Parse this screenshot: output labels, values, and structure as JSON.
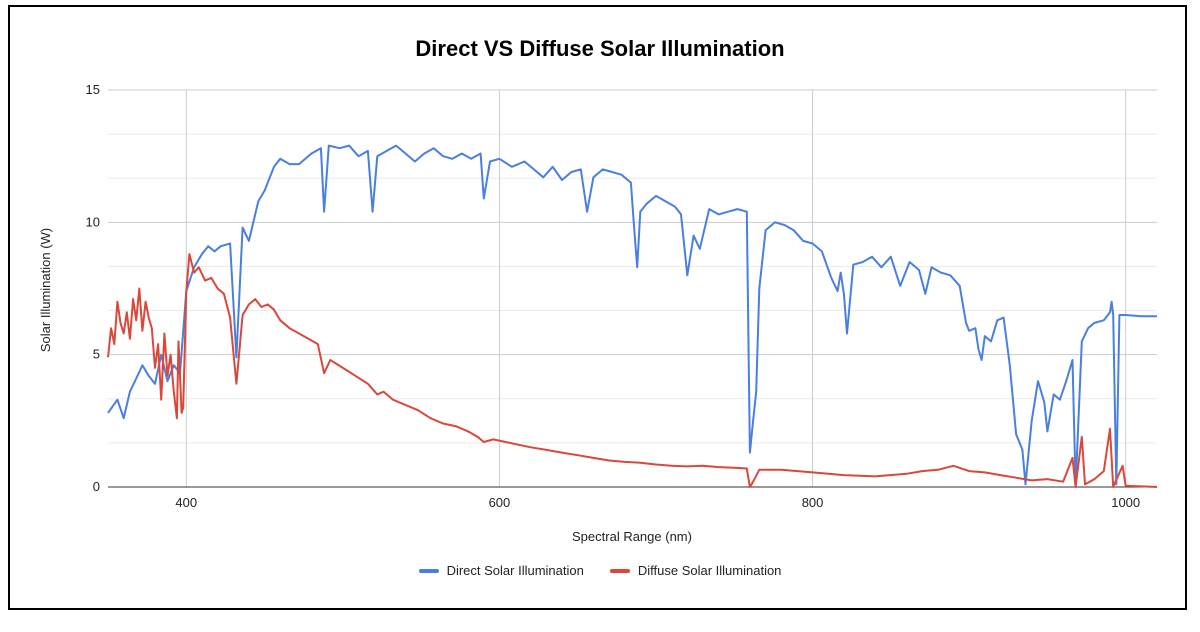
{
  "chart_data": {
    "type": "line",
    "title": "Direct VS Diffuse Solar Illumination",
    "xlabel": "Spectral Range (nm)",
    "ylabel": "Solar Illumination (W)",
    "xlim": [
      350,
      1020
    ],
    "ylim": [
      0,
      15
    ],
    "xticks": [
      400,
      600,
      800,
      1000
    ],
    "yticks": [
      0,
      5,
      10,
      15
    ],
    "grid": true,
    "legend_position": "bottom",
    "series": [
      {
        "name": "Direct Solar Illumination",
        "color": "#4a7fe0",
        "points": [
          [
            350,
            2.8
          ],
          [
            356,
            3.3
          ],
          [
            360,
            2.6
          ],
          [
            364,
            3.6
          ],
          [
            368,
            4.1
          ],
          [
            372,
            4.6
          ],
          [
            376,
            4.2
          ],
          [
            380,
            3.9
          ],
          [
            384,
            5.0
          ],
          [
            388,
            4.0
          ],
          [
            392,
            4.6
          ],
          [
            396,
            4.3
          ],
          [
            400,
            7.4
          ],
          [
            405,
            8.3
          ],
          [
            410,
            8.8
          ],
          [
            414,
            9.1
          ],
          [
            418,
            8.9
          ],
          [
            422,
            9.1
          ],
          [
            428,
            9.2
          ],
          [
            432,
            4.9
          ],
          [
            436,
            9.8
          ],
          [
            440,
            9.3
          ],
          [
            446,
            10.8
          ],
          [
            450,
            11.2
          ],
          [
            456,
            12.1
          ],
          [
            460,
            12.4
          ],
          [
            466,
            12.2
          ],
          [
            472,
            12.2
          ],
          [
            480,
            12.6
          ],
          [
            486,
            12.8
          ],
          [
            488,
            10.4
          ],
          [
            491,
            12.9
          ],
          [
            498,
            12.8
          ],
          [
            504,
            12.9
          ],
          [
            510,
            12.5
          ],
          [
            516,
            12.7
          ],
          [
            519,
            10.4
          ],
          [
            522,
            12.5
          ],
          [
            528,
            12.7
          ],
          [
            534,
            12.9
          ],
          [
            540,
            12.6
          ],
          [
            546,
            12.3
          ],
          [
            552,
            12.6
          ],
          [
            558,
            12.8
          ],
          [
            564,
            12.5
          ],
          [
            570,
            12.4
          ],
          [
            576,
            12.6
          ],
          [
            582,
            12.4
          ],
          [
            588,
            12.6
          ],
          [
            590,
            10.9
          ],
          [
            594,
            12.3
          ],
          [
            600,
            12.4
          ],
          [
            608,
            12.1
          ],
          [
            616,
            12.3
          ],
          [
            622,
            12.0
          ],
          [
            628,
            11.7
          ],
          [
            634,
            12.1
          ],
          [
            640,
            11.6
          ],
          [
            646,
            11.9
          ],
          [
            652,
            12.0
          ],
          [
            656,
            10.4
          ],
          [
            660,
            11.7
          ],
          [
            666,
            12.0
          ],
          [
            672,
            11.9
          ],
          [
            678,
            11.8
          ],
          [
            684,
            11.5
          ],
          [
            686,
            9.8
          ],
          [
            688,
            8.3
          ],
          [
            690,
            10.4
          ],
          [
            694,
            10.7
          ],
          [
            700,
            11.0
          ],
          [
            706,
            10.8
          ],
          [
            712,
            10.6
          ],
          [
            716,
            10.3
          ],
          [
            720,
            8.0
          ],
          [
            724,
            9.5
          ],
          [
            728,
            9.0
          ],
          [
            734,
            10.5
          ],
          [
            740,
            10.3
          ],
          [
            746,
            10.4
          ],
          [
            752,
            10.5
          ],
          [
            758,
            10.4
          ],
          [
            760,
            1.3
          ],
          [
            762,
            2.5
          ],
          [
            764,
            3.6
          ],
          [
            766,
            7.5
          ],
          [
            770,
            9.7
          ],
          [
            776,
            10.0
          ],
          [
            782,
            9.9
          ],
          [
            788,
            9.7
          ],
          [
            794,
            9.3
          ],
          [
            800,
            9.2
          ],
          [
            806,
            8.9
          ],
          [
            812,
            7.9
          ],
          [
            816,
            7.4
          ],
          [
            818,
            8.1
          ],
          [
            820,
            7.3
          ],
          [
            822,
            5.8
          ],
          [
            826,
            8.4
          ],
          [
            832,
            8.5
          ],
          [
            838,
            8.7
          ],
          [
            844,
            8.3
          ],
          [
            850,
            8.7
          ],
          [
            856,
            7.6
          ],
          [
            862,
            8.5
          ],
          [
            868,
            8.2
          ],
          [
            872,
            7.3
          ],
          [
            876,
            8.3
          ],
          [
            882,
            8.1
          ],
          [
            888,
            8.0
          ],
          [
            894,
            7.6
          ],
          [
            898,
            6.2
          ],
          [
            900,
            5.9
          ],
          [
            904,
            6.0
          ],
          [
            906,
            5.2
          ],
          [
            908,
            4.8
          ],
          [
            910,
            5.7
          ],
          [
            914,
            5.5
          ],
          [
            918,
            6.3
          ],
          [
            922,
            6.4
          ],
          [
            926,
            4.6
          ],
          [
            930,
            2.0
          ],
          [
            934,
            1.4
          ],
          [
            936,
            0.1
          ],
          [
            940,
            2.5
          ],
          [
            944,
            4.0
          ],
          [
            948,
            3.2
          ],
          [
            950,
            2.1
          ],
          [
            954,
            3.5
          ],
          [
            958,
            3.3
          ],
          [
            962,
            4.0
          ],
          [
            966,
            4.8
          ],
          [
            968,
            0.0
          ],
          [
            972,
            5.5
          ],
          [
            976,
            6.0
          ],
          [
            980,
            6.2
          ],
          [
            986,
            6.3
          ],
          [
            990,
            6.6
          ],
          [
            991,
            7.0
          ],
          [
            992,
            6.5
          ],
          [
            994,
            0.1
          ],
          [
            996,
            6.5
          ],
          [
            1000,
            6.5
          ],
          [
            1010,
            6.45
          ],
          [
            1020,
            6.45
          ]
        ]
      },
      {
        "name": "Diffuse Solar Illumination",
        "color": "#d9483b",
        "points": [
          [
            350,
            4.9
          ],
          [
            352,
            6.0
          ],
          [
            354,
            5.4
          ],
          [
            356,
            7.0
          ],
          [
            358,
            6.2
          ],
          [
            360,
            5.8
          ],
          [
            362,
            6.6
          ],
          [
            364,
            5.6
          ],
          [
            366,
            7.1
          ],
          [
            368,
            6.3
          ],
          [
            370,
            7.5
          ],
          [
            372,
            5.9
          ],
          [
            374,
            7.0
          ],
          [
            376,
            6.4
          ],
          [
            378,
            6.0
          ],
          [
            380,
            4.5
          ],
          [
            382,
            5.4
          ],
          [
            384,
            3.3
          ],
          [
            386,
            5.8
          ],
          [
            388,
            4.2
          ],
          [
            390,
            5.0
          ],
          [
            392,
            3.6
          ],
          [
            394,
            2.6
          ],
          [
            395,
            5.5
          ],
          [
            397,
            2.8
          ],
          [
            398,
            3.0
          ],
          [
            400,
            7.4
          ],
          [
            402,
            8.8
          ],
          [
            405,
            8.1
          ],
          [
            408,
            8.3
          ],
          [
            412,
            7.8
          ],
          [
            416,
            7.9
          ],
          [
            420,
            7.5
          ],
          [
            424,
            7.3
          ],
          [
            428,
            6.4
          ],
          [
            432,
            3.9
          ],
          [
            436,
            6.5
          ],
          [
            440,
            6.9
          ],
          [
            444,
            7.1
          ],
          [
            448,
            6.8
          ],
          [
            452,
            6.9
          ],
          [
            456,
            6.7
          ],
          [
            460,
            6.3
          ],
          [
            466,
            6.0
          ],
          [
            472,
            5.8
          ],
          [
            478,
            5.6
          ],
          [
            484,
            5.4
          ],
          [
            488,
            4.3
          ],
          [
            492,
            4.8
          ],
          [
            500,
            4.5
          ],
          [
            508,
            4.2
          ],
          [
            516,
            3.9
          ],
          [
            522,
            3.5
          ],
          [
            526,
            3.6
          ],
          [
            532,
            3.3
          ],
          [
            540,
            3.1
          ],
          [
            548,
            2.9
          ],
          [
            556,
            2.6
          ],
          [
            564,
            2.4
          ],
          [
            572,
            2.3
          ],
          [
            580,
            2.1
          ],
          [
            586,
            1.9
          ],
          [
            590,
            1.7
          ],
          [
            596,
            1.8
          ],
          [
            604,
            1.7
          ],
          [
            612,
            1.6
          ],
          [
            620,
            1.5
          ],
          [
            630,
            1.4
          ],
          [
            640,
            1.3
          ],
          [
            650,
            1.2
          ],
          [
            660,
            1.1
          ],
          [
            670,
            1.0
          ],
          [
            680,
            0.95
          ],
          [
            690,
            0.92
          ],
          [
            700,
            0.85
          ],
          [
            710,
            0.8
          ],
          [
            720,
            0.78
          ],
          [
            730,
            0.8
          ],
          [
            740,
            0.75
          ],
          [
            750,
            0.73
          ],
          [
            758,
            0.7
          ],
          [
            760,
            0.0
          ],
          [
            762,
            0.2
          ],
          [
            766,
            0.65
          ],
          [
            780,
            0.65
          ],
          [
            800,
            0.55
          ],
          [
            820,
            0.45
          ],
          [
            840,
            0.4
          ],
          [
            860,
            0.5
          ],
          [
            870,
            0.6
          ],
          [
            880,
            0.65
          ],
          [
            890,
            0.8
          ],
          [
            900,
            0.6
          ],
          [
            910,
            0.55
          ],
          [
            920,
            0.45
          ],
          [
            930,
            0.35
          ],
          [
            940,
            0.25
          ],
          [
            950,
            0.3
          ],
          [
            960,
            0.2
          ],
          [
            966,
            1.1
          ],
          [
            968,
            0.0
          ],
          [
            972,
            1.9
          ],
          [
            974,
            0.1
          ],
          [
            980,
            0.3
          ],
          [
            986,
            0.6
          ],
          [
            990,
            2.2
          ],
          [
            992,
            0.0
          ],
          [
            998,
            0.8
          ],
          [
            1000,
            0.05
          ],
          [
            1020,
            0.0
          ]
        ]
      }
    ]
  }
}
